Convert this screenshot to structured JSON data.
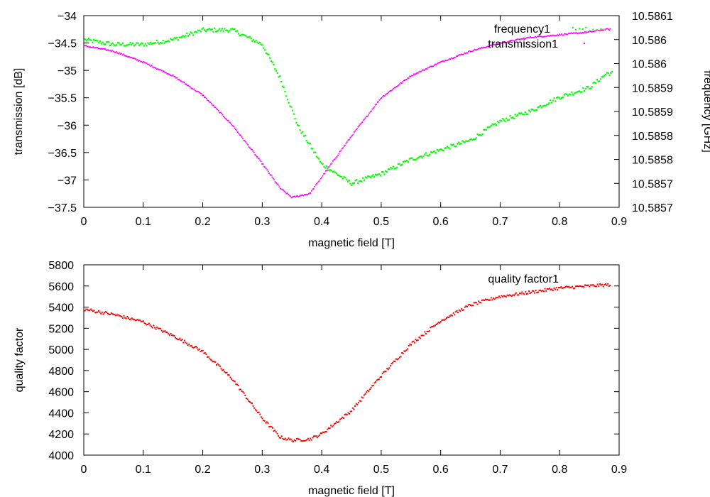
{
  "chart_data": [
    {
      "type": "scatter",
      "xlabel": "magnetic field [T]",
      "ylabel": "transmission [dB]",
      "y2label": "frequency [GHz]",
      "xlim": [
        0,
        0.9
      ],
      "ylim": [
        -37.5,
        -34
      ],
      "y2lim": [
        10.58565,
        10.58605
      ],
      "x_ticks": [
        "0",
        "0.1",
        "0.2",
        "0.3",
        "0.4",
        "0.5",
        "0.6",
        "0.7",
        "0.8",
        "0.9"
      ],
      "y_ticks": [
        "-34",
        "-34.5",
        "-35",
        "-35.5",
        "-36",
        "-36.5",
        "-37",
        "-37.5"
      ],
      "y2_ticks": [
        "10.5861",
        "10.586",
        "10.586",
        "10.5859",
        "10.5859",
        "10.5858",
        "10.5858",
        "10.5857",
        "10.5857"
      ],
      "legend_position": "top-right",
      "colors": {
        "frequency": "#00ff00",
        "transmission": "#ff00ff"
      },
      "series": [
        {
          "name": "frequency1",
          "axis": "y2",
          "points": [
            [
              0.0,
              10.586
            ],
            [
              0.05,
              10.58599
            ],
            [
              0.1,
              10.58599
            ],
            [
              0.15,
              10.586
            ],
            [
              0.2,
              10.58602
            ],
            [
              0.25,
              10.58602
            ],
            [
              0.3,
              10.58599
            ],
            [
              0.33,
              10.58592
            ],
            [
              0.36,
              10.58582
            ],
            [
              0.4,
              10.58574
            ],
            [
              0.45,
              10.5857
            ],
            [
              0.5,
              10.58572
            ],
            [
              0.55,
              10.58575
            ],
            [
              0.6,
              10.58577
            ],
            [
              0.65,
              10.58579
            ],
            [
              0.7,
              10.58583
            ],
            [
              0.75,
              10.58585
            ],
            [
              0.8,
              10.58588
            ],
            [
              0.85,
              10.5859
            ],
            [
              0.88,
              10.58593
            ]
          ]
        },
        {
          "name": "transmission1",
          "axis": "y",
          "points": [
            [
              0.0,
              -34.55
            ],
            [
              0.05,
              -34.65
            ],
            [
              0.1,
              -34.85
            ],
            [
              0.15,
              -35.1
            ],
            [
              0.2,
              -35.45
            ],
            [
              0.25,
              -36.0
            ],
            [
              0.3,
              -36.7
            ],
            [
              0.33,
              -37.15
            ],
            [
              0.35,
              -37.32
            ],
            [
              0.38,
              -37.25
            ],
            [
              0.4,
              -36.95
            ],
            [
              0.45,
              -36.2
            ],
            [
              0.5,
              -35.5
            ],
            [
              0.55,
              -35.1
            ],
            [
              0.6,
              -34.85
            ],
            [
              0.65,
              -34.65
            ],
            [
              0.7,
              -34.5
            ],
            [
              0.75,
              -34.4
            ],
            [
              0.8,
              -34.35
            ],
            [
              0.85,
              -34.3
            ],
            [
              0.88,
              -34.25
            ]
          ]
        }
      ]
    },
    {
      "type": "scatter",
      "xlabel": "magnetic field [T]",
      "ylabel": "quality factor",
      "xlim": [
        0,
        0.9
      ],
      "ylim": [
        4000,
        5800
      ],
      "x_ticks": [
        "0",
        "0.1",
        "0.2",
        "0.3",
        "0.4",
        "0.5",
        "0.6",
        "0.7",
        "0.8",
        "0.9"
      ],
      "y_ticks": [
        "5800",
        "5600",
        "5400",
        "5200",
        "5000",
        "4800",
        "4600",
        "4400",
        "4200",
        "4000"
      ],
      "legend_position": "top-right",
      "colors": {
        "quality": "#ff0000"
      },
      "series": [
        {
          "name": "quality factor1",
          "axis": "y",
          "points": [
            [
              0.0,
              5380
            ],
            [
              0.05,
              5330
            ],
            [
              0.1,
              5260
            ],
            [
              0.15,
              5130
            ],
            [
              0.2,
              4980
            ],
            [
              0.25,
              4720
            ],
            [
              0.3,
              4350
            ],
            [
              0.33,
              4170
            ],
            [
              0.35,
              4140
            ],
            [
              0.38,
              4150
            ],
            [
              0.4,
              4200
            ],
            [
              0.45,
              4420
            ],
            [
              0.5,
              4750
            ],
            [
              0.55,
              5050
            ],
            [
              0.6,
              5270
            ],
            [
              0.65,
              5420
            ],
            [
              0.7,
              5500
            ],
            [
              0.75,
              5540
            ],
            [
              0.8,
              5580
            ],
            [
              0.85,
              5600
            ],
            [
              0.88,
              5610
            ]
          ]
        }
      ]
    }
  ]
}
